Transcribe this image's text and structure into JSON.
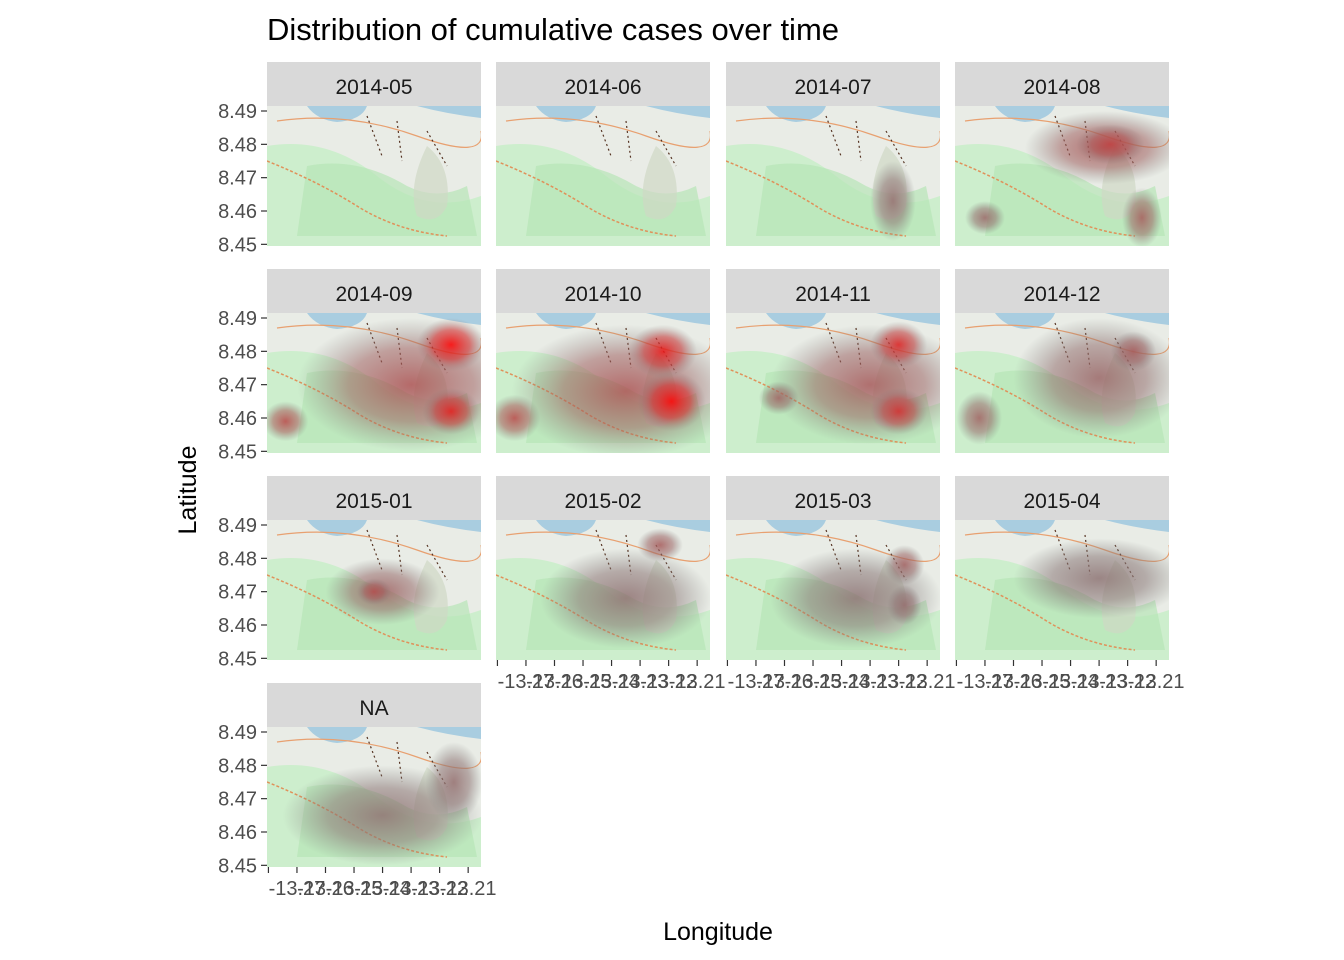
{
  "chart_data": {
    "type": "heatmap",
    "title": "Distribution of cumulative cases over time",
    "xlabel": "Longitude",
    "ylabel": "Latitude",
    "x_ticks": [
      "-13.27",
      "-13.26",
      "-13.25",
      "-13.24",
      "-13.23",
      "-13.22",
      "-13.21"
    ],
    "y_ticks": [
      "8.45",
      "8.46",
      "8.47",
      "8.48",
      "8.49"
    ],
    "xlim": [
      -13.2805,
      -13.2055
    ],
    "ylim": [
      8.4495,
      8.4915
    ],
    "colors": {
      "strip_bg": "#d9d9d9",
      "density_low": "#808080",
      "density_high": "#ff0000",
      "map_green": "#c8efc8",
      "map_water": "#a9cde0"
    },
    "facets": [
      {
        "label": "2014-05",
        "blobs": []
      },
      {
        "label": "2014-06",
        "blobs": []
      },
      {
        "label": "2014-07",
        "blobs": [
          {
            "x": -13.222,
            "y": 8.463,
            "rx": 0.008,
            "ry": 0.012,
            "level": 0.15
          }
        ]
      },
      {
        "label": "2014-08",
        "blobs": [
          {
            "x": -13.228,
            "y": 8.479,
            "rx": 0.028,
            "ry": 0.011,
            "level": 0.35
          },
          {
            "x": -13.215,
            "y": 8.458,
            "rx": 0.007,
            "ry": 0.009,
            "level": 0.3
          },
          {
            "x": -13.27,
            "y": 8.458,
            "rx": 0.007,
            "ry": 0.005,
            "level": 0.2
          },
          {
            "x": -13.226,
            "y": 8.48,
            "rx": 0.012,
            "ry": 0.006,
            "level": 0.5
          }
        ]
      },
      {
        "label": "2014-09",
        "blobs": [
          {
            "x": -13.23,
            "y": 8.47,
            "rx": 0.04,
            "ry": 0.02,
            "level": 0.35
          },
          {
            "x": -13.216,
            "y": 8.482,
            "rx": 0.012,
            "ry": 0.008,
            "level": 1.0
          },
          {
            "x": -13.216,
            "y": 8.462,
            "rx": 0.01,
            "ry": 0.007,
            "level": 0.8
          },
          {
            "x": -13.274,
            "y": 8.459,
            "rx": 0.008,
            "ry": 0.006,
            "level": 0.45
          }
        ]
      },
      {
        "label": "2014-10",
        "blobs": [
          {
            "x": -13.235,
            "y": 8.468,
            "rx": 0.04,
            "ry": 0.02,
            "level": 0.35
          },
          {
            "x": -13.222,
            "y": 8.48,
            "rx": 0.012,
            "ry": 0.008,
            "level": 0.85
          },
          {
            "x": -13.219,
            "y": 8.465,
            "rx": 0.012,
            "ry": 0.009,
            "level": 1.0
          },
          {
            "x": -13.274,
            "y": 8.46,
            "rx": 0.009,
            "ry": 0.007,
            "level": 0.45
          }
        ]
      },
      {
        "label": "2014-11",
        "blobs": [
          {
            "x": -13.23,
            "y": 8.47,
            "rx": 0.035,
            "ry": 0.018,
            "level": 0.3
          },
          {
            "x": -13.22,
            "y": 8.482,
            "rx": 0.01,
            "ry": 0.007,
            "level": 0.75
          },
          {
            "x": -13.22,
            "y": 8.462,
            "rx": 0.01,
            "ry": 0.007,
            "level": 0.65
          },
          {
            "x": -13.262,
            "y": 8.466,
            "rx": 0.007,
            "ry": 0.005,
            "level": 0.25
          }
        ]
      },
      {
        "label": "2014-12",
        "blobs": [
          {
            "x": -13.23,
            "y": 8.472,
            "rx": 0.03,
            "ry": 0.018,
            "level": 0.2
          },
          {
            "x": -13.218,
            "y": 8.48,
            "rx": 0.008,
            "ry": 0.006,
            "level": 0.3
          },
          {
            "x": -13.272,
            "y": 8.46,
            "rx": 0.008,
            "ry": 0.008,
            "level": 0.25
          }
        ]
      },
      {
        "label": "2015-01",
        "blobs": [
          {
            "x": -13.24,
            "y": 8.47,
            "rx": 0.02,
            "ry": 0.01,
            "level": 0.25
          },
          {
            "x": -13.243,
            "y": 8.47,
            "rx": 0.006,
            "ry": 0.004,
            "level": 0.4
          }
        ]
      },
      {
        "label": "2015-02",
        "blobs": [
          {
            "x": -13.223,
            "y": 8.484,
            "rx": 0.008,
            "ry": 0.005,
            "level": 0.3
          },
          {
            "x": -13.235,
            "y": 8.468,
            "rx": 0.03,
            "ry": 0.015,
            "level": 0.12
          }
        ]
      },
      {
        "label": "2015-03",
        "blobs": [
          {
            "x": -13.218,
            "y": 8.478,
            "rx": 0.007,
            "ry": 0.006,
            "level": 0.3
          },
          {
            "x": -13.218,
            "y": 8.466,
            "rx": 0.006,
            "ry": 0.006,
            "level": 0.25
          },
          {
            "x": -13.235,
            "y": 8.468,
            "rx": 0.03,
            "ry": 0.015,
            "level": 0.1
          }
        ]
      },
      {
        "label": "2015-04",
        "blobs": [
          {
            "x": -13.23,
            "y": 8.474,
            "rx": 0.03,
            "ry": 0.012,
            "level": 0.1
          }
        ]
      },
      {
        "label": "NA",
        "blobs": [
          {
            "x": -13.24,
            "y": 8.465,
            "rx": 0.035,
            "ry": 0.015,
            "level": 0.12
          },
          {
            "x": -13.215,
            "y": 8.475,
            "rx": 0.01,
            "ry": 0.012,
            "level": 0.15
          }
        ]
      }
    ]
  }
}
